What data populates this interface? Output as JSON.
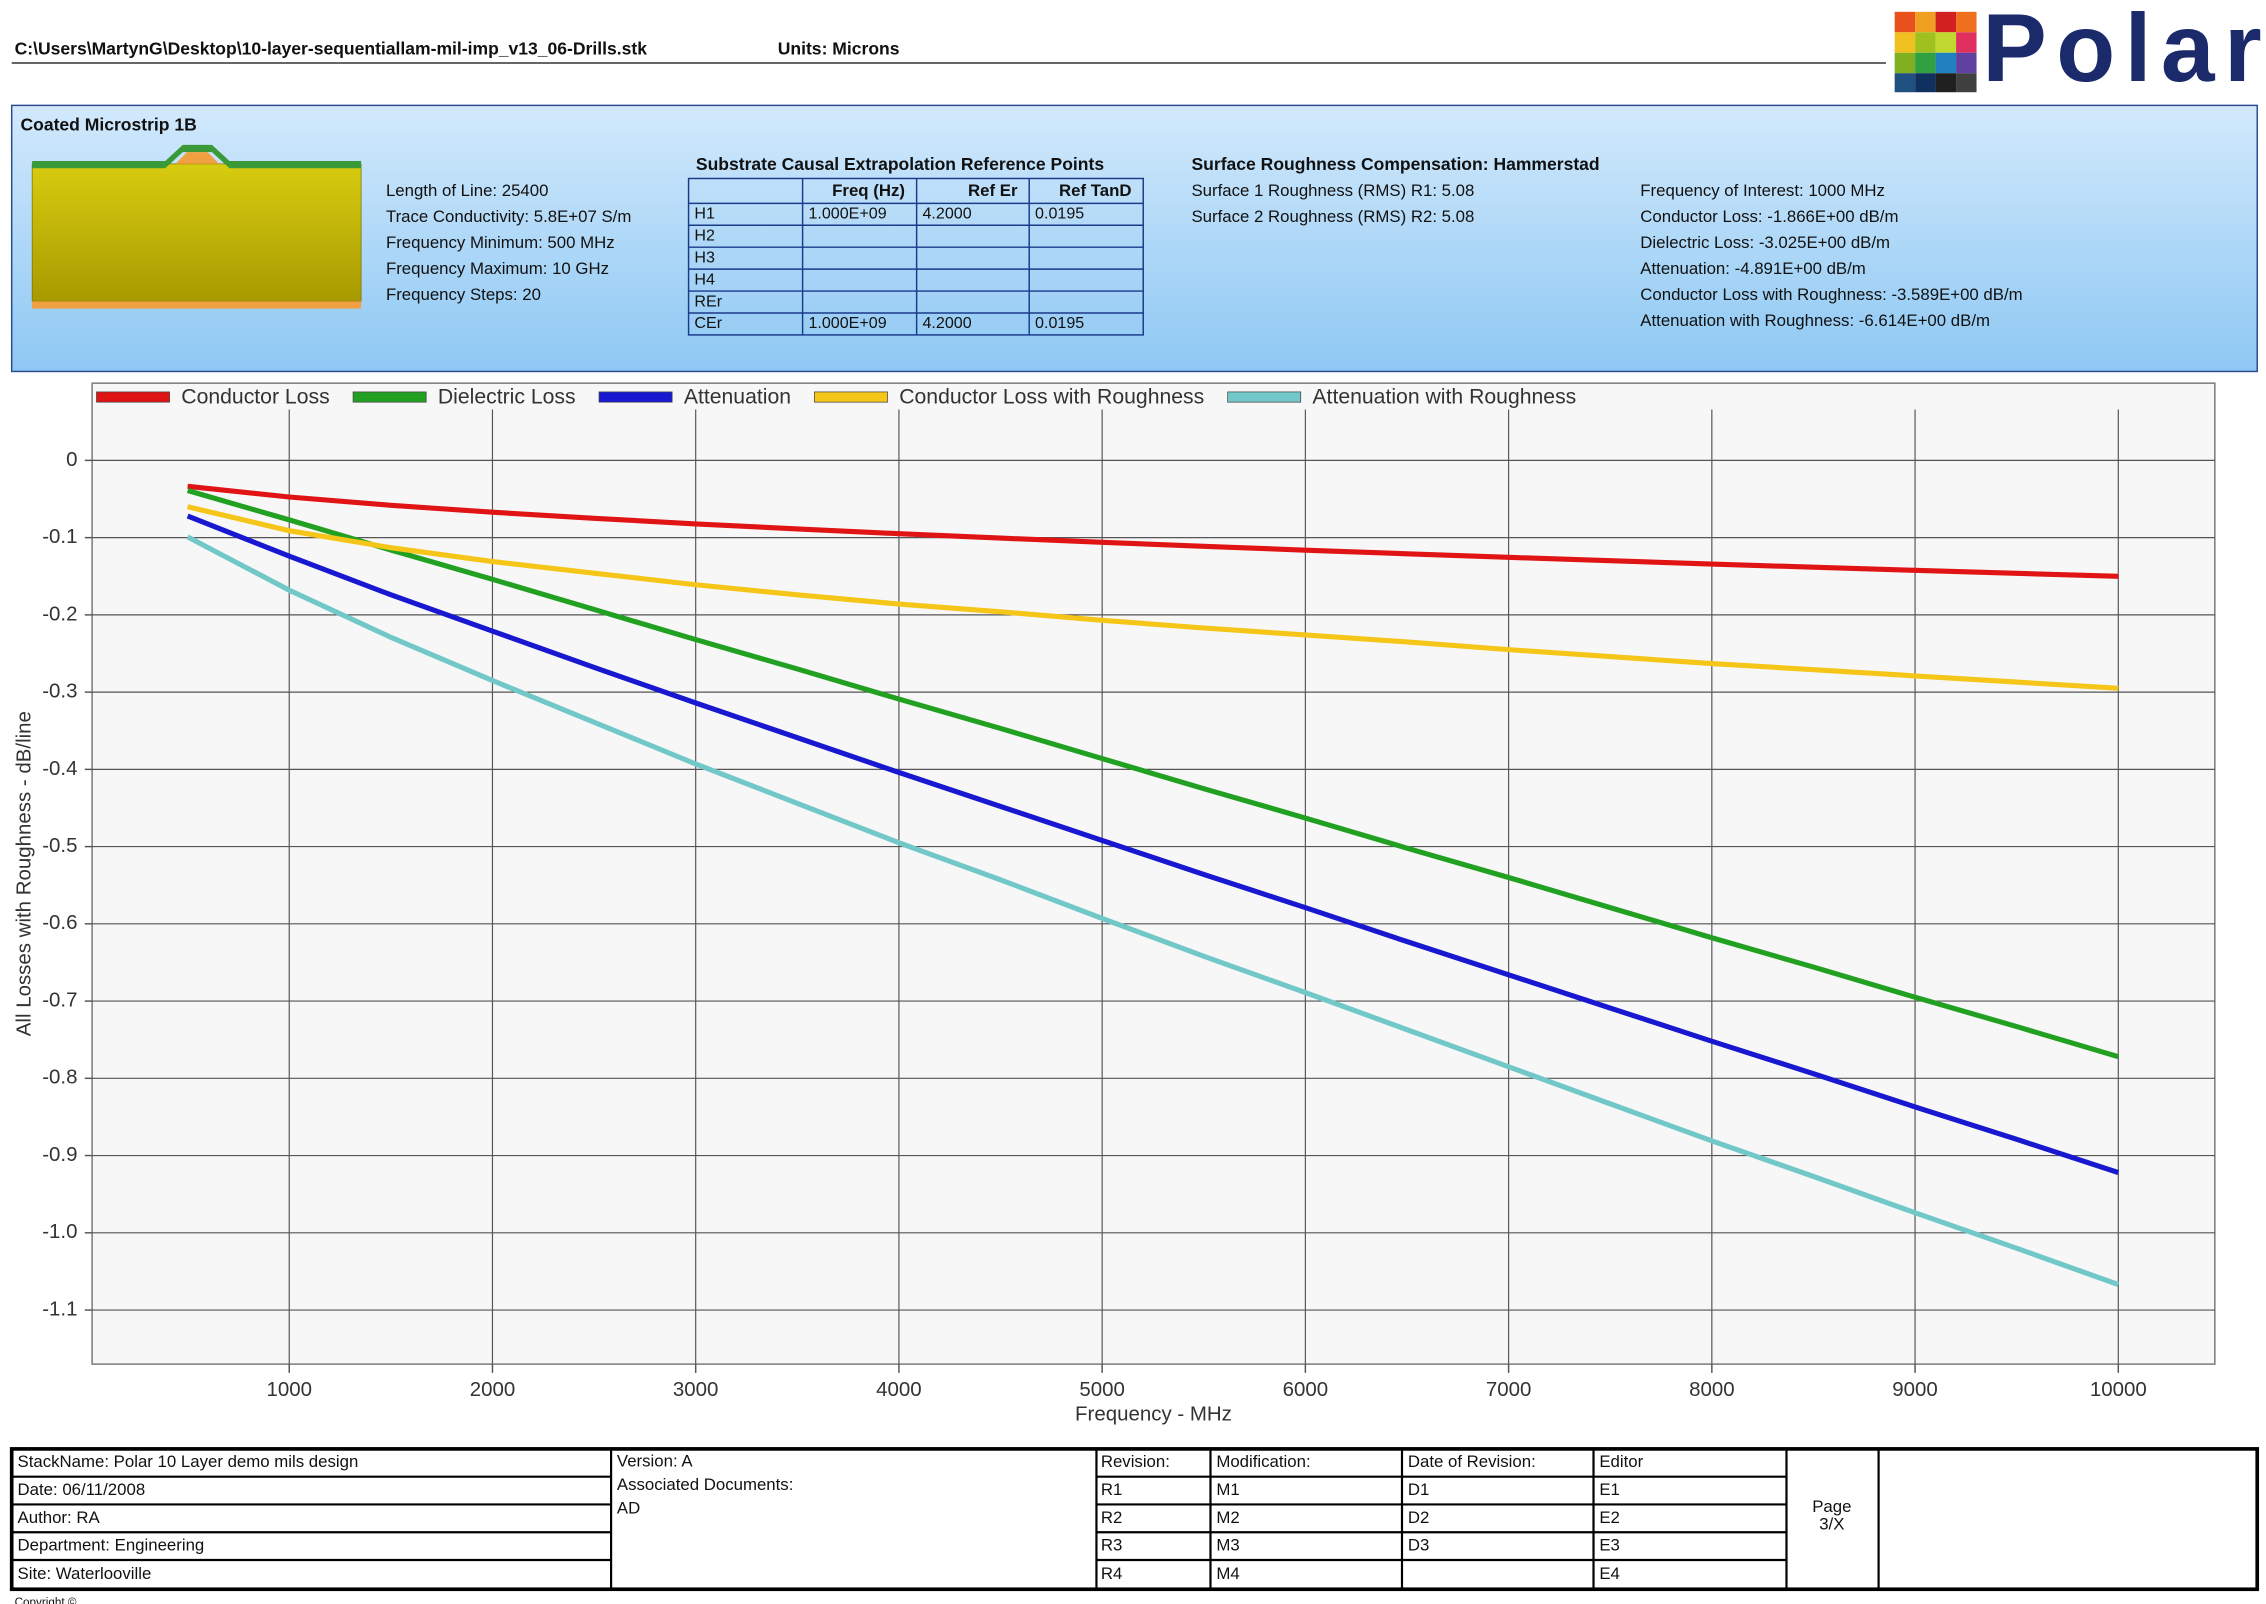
{
  "header": {
    "file_path": "C:\\Users\\MartynG\\Desktop\\10-layer-sequentiallam-mil-imp_v13_06-Drills.stk",
    "units": "Units: Microns",
    "logo": "Polar"
  },
  "panel": {
    "title": "Coated Microstrip 1B",
    "params": [
      "Length of Line: 25400",
      "Trace Conductivity: 5.8E+07 S/m",
      "Frequency Minimum: 500 MHz",
      "Frequency Maximum: 10 GHz",
      "Frequency Steps: 20"
    ],
    "table": {
      "title": "Substrate Causal Extrapolation Reference Points",
      "columns": [
        "Freq (Hz)",
        "Ref Er",
        "Ref TanD"
      ],
      "rows": [
        {
          "label": "H1",
          "cells": [
            "1.000E+09",
            "4.2000",
            "0.0195"
          ]
        },
        {
          "label": "H2"
        },
        {
          "label": "H3"
        },
        {
          "label": "H4"
        },
        {
          "label": "REr"
        },
        {
          "label": "CEr",
          "cells": [
            "1.000E+09",
            "4.2000",
            "0.0195"
          ]
        }
      ]
    },
    "roughness": {
      "title": "Surface Roughness Compensation: Hammerstad",
      "lines": [
        "Surface 1 Roughness (RMS) R1: 5.08",
        "Surface 2 Roughness (RMS) R2: 5.08"
      ]
    },
    "results": [
      "Frequency of Interest: 1000 MHz",
      "Conductor Loss: -1.866E+00 dB/m",
      "Dielectric Loss: -3.025E+00 dB/m",
      "Attenuation: -4.891E+00 dB/m",
      "Conductor Loss with Roughness: -3.589E+00 dB/m",
      "Attenuation with Roughness: -6.614E+00 dB/m"
    ]
  },
  "chart_data": {
    "type": "line",
    "xlabel": "Frequency - MHz",
    "ylabel": "All Losses with Roughness - dB/line",
    "grid": true,
    "legend": "top",
    "x": [
      500,
      1000,
      1500,
      2000,
      2500,
      3000,
      3500,
      4000,
      4500,
      5000,
      5500,
      6000,
      6500,
      7000,
      7500,
      8000,
      8500,
      9000,
      9500,
      10000
    ],
    "series": [
      {
        "name": "Conductor Loss",
        "color": "#e01414",
        "values": [
          -0.0335,
          -0.0474,
          -0.0581,
          -0.0671,
          -0.075,
          -0.0822,
          -0.0887,
          -0.0949,
          -0.1006,
          -0.1061,
          -0.1112,
          -0.1162,
          -0.1209,
          -0.1255,
          -0.1299,
          -0.1342,
          -0.1383,
          -0.1423,
          -0.1462,
          -0.15
        ]
      },
      {
        "name": "Dielectric Loss",
        "color": "#22a022",
        "values": [
          -0.039,
          -0.077,
          -0.116,
          -0.154,
          -0.193,
          -0.232,
          -0.27,
          -0.309,
          -0.347,
          -0.386,
          -0.425,
          -0.463,
          -0.502,
          -0.54,
          -0.579,
          -0.618,
          -0.656,
          -0.695,
          -0.733,
          -0.772
        ]
      },
      {
        "name": "Attenuation",
        "color": "#1818d0",
        "values": [
          -0.072,
          -0.124,
          -0.174,
          -0.221,
          -0.268,
          -0.314,
          -0.359,
          -0.404,
          -0.448,
          -0.492,
          -0.536,
          -0.579,
          -0.623,
          -0.666,
          -0.709,
          -0.752,
          -0.794,
          -0.837,
          -0.879,
          -0.922
        ]
      },
      {
        "name": "Conductor Loss with Roughness",
        "color": "#f5c518",
        "values": [
          -0.06,
          -0.091,
          -0.113,
          -0.131,
          -0.146,
          -0.161,
          -0.174,
          -0.186,
          -0.196,
          -0.207,
          -0.217,
          -0.226,
          -0.235,
          -0.245,
          -0.254,
          -0.263,
          -0.271,
          -0.279,
          -0.287,
          -0.295
        ]
      },
      {
        "name": "Attenuation with Roughness",
        "color": "#72c8c8",
        "values": [
          -0.099,
          -0.168,
          -0.229,
          -0.285,
          -0.339,
          -0.393,
          -0.444,
          -0.495,
          -0.543,
          -0.593,
          -0.642,
          -0.689,
          -0.737,
          -0.785,
          -0.833,
          -0.881,
          -0.927,
          -0.974,
          -1.02,
          -1.067
        ]
      }
    ],
    "xlim": [
      30,
      10475
    ],
    "xticks": [
      1000,
      2000,
      3000,
      4000,
      5000,
      6000,
      7000,
      8000,
      9000,
      10000
    ],
    "ylim": [
      -1.17,
      0.1
    ],
    "yticks": [
      0,
      -0.1,
      -0.2,
      -0.3,
      -0.4,
      -0.5,
      -0.6,
      -0.7,
      -0.8,
      -0.9,
      {
        "value": -1,
        "label": "-1.0"
      },
      -1.1
    ]
  },
  "footer": {
    "cols": [
      [
        "StackName: Polar 10 Layer demo mils design",
        "Date: 06/11/2008",
        "Author: RA",
        "Department: Engineering",
        "Site: Waterlooville"
      ],
      [
        "Revision:",
        "R1",
        "R2",
        "R3",
        "R4"
      ],
      [
        "Modification:",
        "M1",
        "M2",
        "M3",
        "M4"
      ],
      [
        "Date of Revision:",
        "D1",
        "D2",
        "D3"
      ],
      [
        "Editor",
        "E1",
        "E2",
        "E3",
        "E4"
      ]
    ],
    "version": "Version: A",
    "assoc_title": "Associated Documents:",
    "assoc": "AD",
    "page": "Page",
    "page_no": "3/X",
    "copyright": "Copyright ©"
  }
}
